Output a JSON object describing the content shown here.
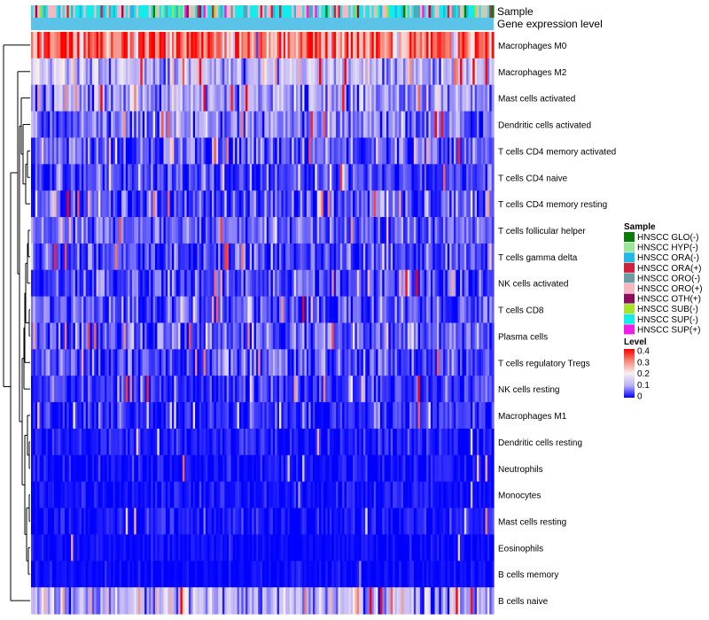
{
  "chart_data": {
    "type": "heatmap",
    "title": "",
    "annotation_labels": [
      "Sample",
      "Gene expression level"
    ],
    "n_samples": 220,
    "rows": [
      {
        "name": "Macrophages M0",
        "mean": 0.3,
        "sd": 0.08,
        "spike": 0.05
      },
      {
        "name": "Macrophages M2",
        "mean": 0.12,
        "sd": 0.045,
        "spike": 0.05
      },
      {
        "name": "Mast cells activated",
        "mean": 0.09,
        "sd": 0.045,
        "spike": 0.06
      },
      {
        "name": "Dendritic cells activated",
        "mean": 0.06,
        "sd": 0.04,
        "spike": 0.05
      },
      {
        "name": "T cells CD4 memory activated",
        "mean": 0.045,
        "sd": 0.04,
        "spike": 0.08
      },
      {
        "name": "T cells CD4 naive",
        "mean": 0.035,
        "sd": 0.035,
        "spike": 0.05
      },
      {
        "name": "T cells CD4 memory resting",
        "mean": 0.04,
        "sd": 0.04,
        "spike": 0.06
      },
      {
        "name": "T cells follicular helper",
        "mean": 0.05,
        "sd": 0.035,
        "spike": 0.04
      },
      {
        "name": "T cells gamma delta",
        "mean": 0.04,
        "sd": 0.035,
        "spike": 0.04
      },
      {
        "name": "NK cells activated",
        "mean": 0.04,
        "sd": 0.035,
        "spike": 0.04
      },
      {
        "name": "T cells CD8",
        "mean": 0.045,
        "sd": 0.04,
        "spike": 0.05
      },
      {
        "name": "Plasma cells",
        "mean": 0.045,
        "sd": 0.04,
        "spike": 0.05
      },
      {
        "name": "T cells regulatory  Tregs",
        "mean": 0.04,
        "sd": 0.035,
        "spike": 0.04
      },
      {
        "name": "NK cells resting",
        "mean": 0.025,
        "sd": 0.03,
        "spike": 0.04
      },
      {
        "name": "Macrophages M1",
        "mean": 0.02,
        "sd": 0.03,
        "spike": 0.04
      },
      {
        "name": "Dendritic cells resting",
        "mean": 0.012,
        "sd": 0.02,
        "spike": 0.03
      },
      {
        "name": "Neutrophils",
        "mean": 0.008,
        "sd": 0.015,
        "spike": 0.03
      },
      {
        "name": "Monocytes",
        "mean": 0.008,
        "sd": 0.015,
        "spike": 0.03
      },
      {
        "name": "Mast cells resting",
        "mean": 0.01,
        "sd": 0.018,
        "spike": 0.03
      },
      {
        "name": "Eosinophils",
        "mean": 0.004,
        "sd": 0.01,
        "spike": 0.02
      },
      {
        "name": "B cells memory",
        "mean": 0.005,
        "sd": 0.01,
        "spike": 0.02
      },
      {
        "name": "B cells naive",
        "mean": 0.11,
        "sd": 0.06,
        "spike": 0.06
      }
    ],
    "sample_groups": [
      {
        "name": "HNSCC GLO(-)",
        "color": "#0b7a0b",
        "weight": 0.04
      },
      {
        "name": "HNSCC HYP(-)",
        "color": "#9be59b",
        "weight": 0.05
      },
      {
        "name": "HNSCC ORA(-)",
        "color": "#22b8e8",
        "weight": 0.1
      },
      {
        "name": "HNSCC ORA(+)",
        "color": "#d1203c",
        "weight": 0.03
      },
      {
        "name": "HNSCC ORO(-)",
        "color": "#6b9ea3",
        "weight": 0.06
      },
      {
        "name": "HNSCC ORO(+)",
        "color": "#f7b6c2",
        "weight": 0.28
      },
      {
        "name": "HNSCC OTH(+)",
        "color": "#8a0e5c",
        "weight": 0.02
      },
      {
        "name": "HNSCC SUB(-)",
        "color": "#a6e22e",
        "weight": 0.03
      },
      {
        "name": "HNSCC SUP(-)",
        "color": "#14ecec",
        "weight": 0.37
      },
      {
        "name": "HNSCC SUP(+)",
        "color": "#ee1ee8",
        "weight": 0.02
      }
    ],
    "gene_expression_level_color": "#5bc3e8",
    "color_scale": {
      "stops": [
        {
          "value": 0,
          "color": "#0000ff"
        },
        {
          "value": 0.1,
          "color": "#bbb0f5"
        },
        {
          "value": 0.2,
          "color": "#f7f0f2"
        },
        {
          "value": 0.3,
          "color": "#f58a7a"
        },
        {
          "value": 0.4,
          "color": "#ff0000"
        }
      ],
      "range": [
        0,
        0.4
      ],
      "ticks": [
        "0.4",
        "0.3",
        "0.2",
        "0.1",
        "0"
      ]
    },
    "legend": {
      "sample_title": "Sample",
      "level_title": "Level",
      "placement": "right"
    }
  }
}
